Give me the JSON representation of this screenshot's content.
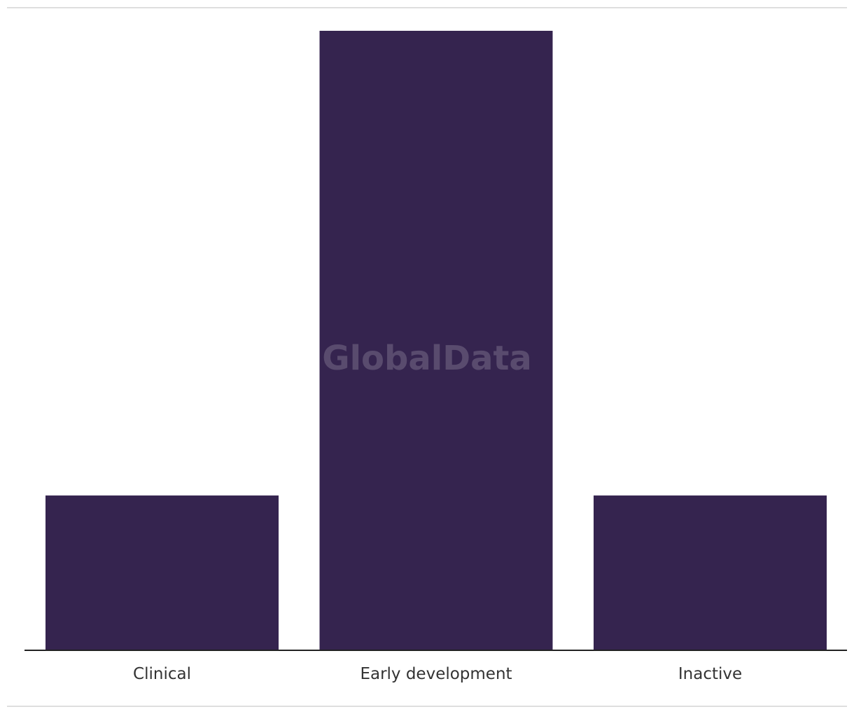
{
  "chart_data": {
    "type": "bar",
    "categories": [
      "Clinical",
      "Early development",
      "Inactive"
    ],
    "values": [
      1,
      4,
      1
    ],
    "ylim": [
      0,
      4
    ],
    "title": "",
    "xlabel": "",
    "ylabel": "",
    "grid": false,
    "legend": "none",
    "bar_color": "#35244f",
    "axis_color": "#222222"
  },
  "watermark": "GlobalData"
}
